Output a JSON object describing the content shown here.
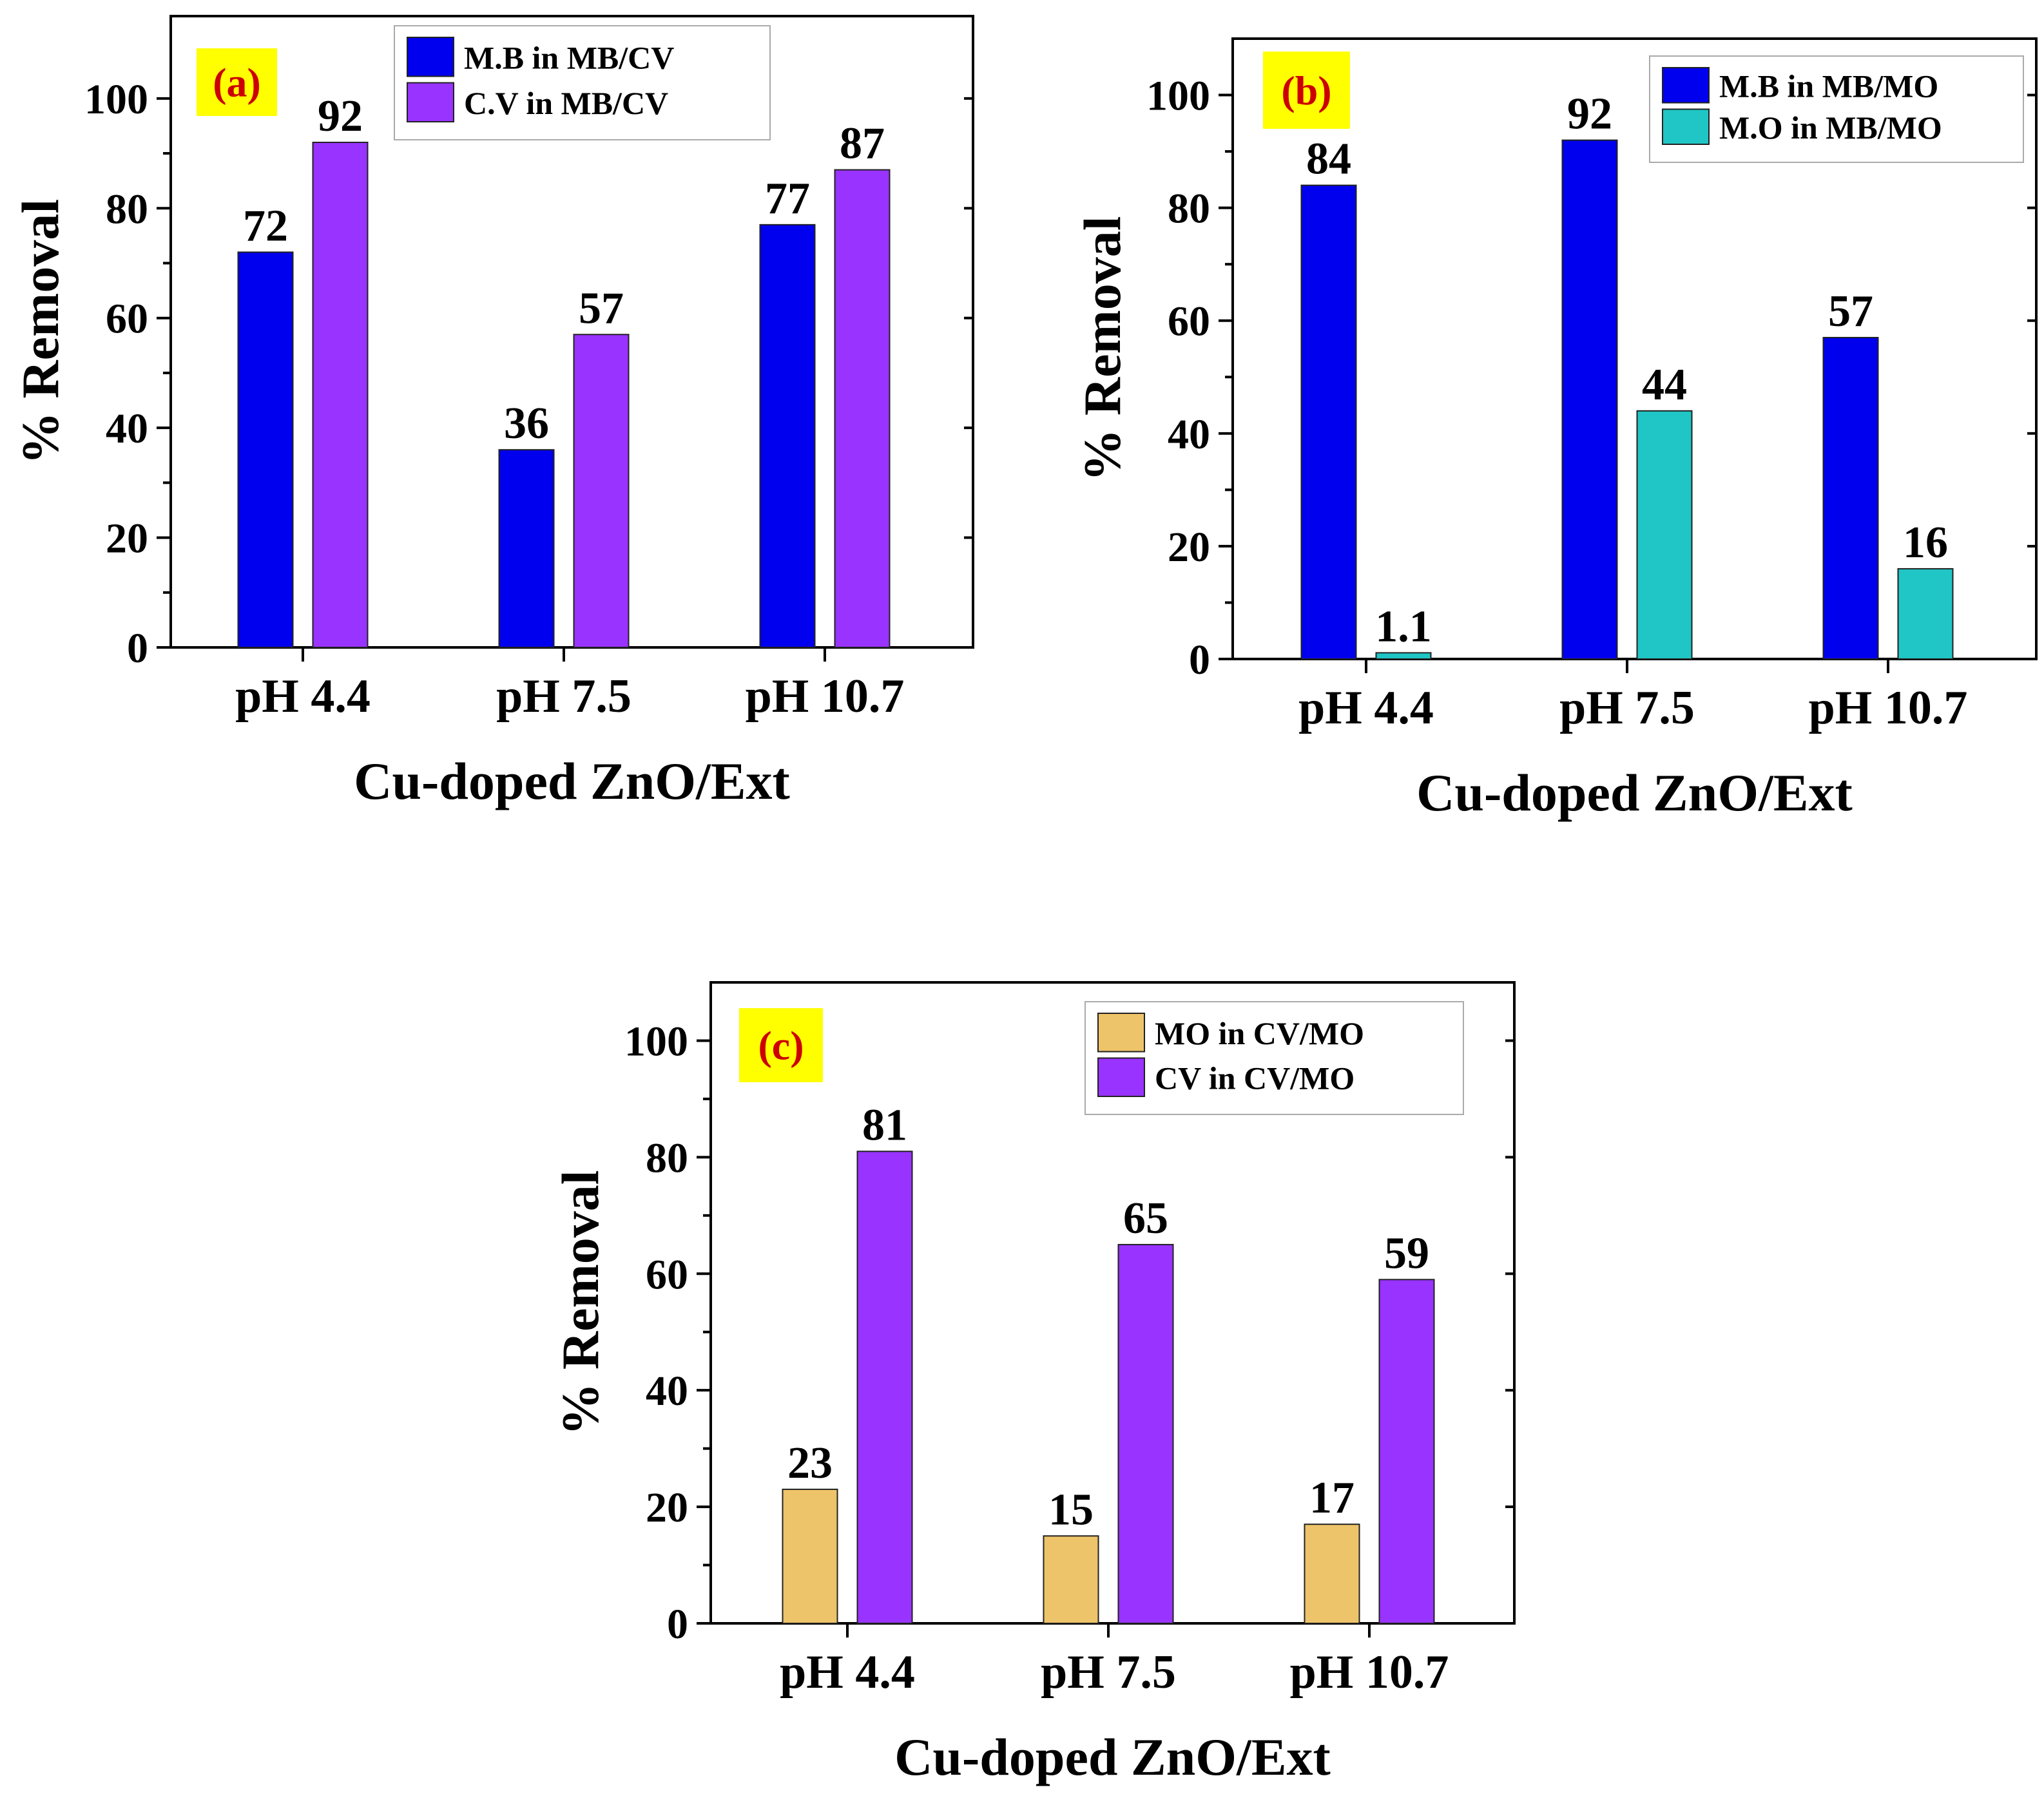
{
  "chart_data": [
    {
      "type": "bar",
      "panel_label": "(a)",
      "categories": [
        "pH 4.4",
        "pH 7.5",
        "pH 10.7"
      ],
      "series": [
        {
          "name": "M.B in MB/CV",
          "values": [
            72,
            36,
            77
          ],
          "value_labels": [
            "72",
            "36",
            "77"
          ],
          "color": "#0000ee"
        },
        {
          "name": "C.V in MB/CV",
          "values": [
            92,
            57,
            87
          ],
          "value_labels": [
            "92",
            "57",
            "87"
          ],
          "color": "#9933ff"
        }
      ],
      "title": "",
      "xlabel": "Cu-doped ZnO/Ext",
      "ylabel": "% Removal",
      "ylim": [
        0,
        115
      ],
      "yticks": [
        "0",
        "20",
        "40",
        "60",
        "80",
        "100"
      ],
      "legend_position": "top-right",
      "grid": false
    },
    {
      "type": "bar",
      "panel_label": "(b)",
      "categories": [
        "pH 4.4",
        "pH 7.5",
        "pH 10.7"
      ],
      "series": [
        {
          "name": "M.B in MB/MO",
          "values": [
            84,
            92,
            57
          ],
          "value_labels": [
            "84",
            "92",
            "57"
          ],
          "color": "#0000ee"
        },
        {
          "name": "M.O in MB/MO",
          "values": [
            1.1,
            44,
            16
          ],
          "value_labels": [
            "1.1",
            "44",
            "16"
          ],
          "color": "#20c5c5"
        }
      ],
      "title": "",
      "xlabel": "Cu-doped ZnO/Ext",
      "ylabel": "% Removal",
      "ylim": [
        0,
        110
      ],
      "yticks": [
        "0",
        "20",
        "40",
        "60",
        "80",
        "100"
      ],
      "legend_position": "top-right",
      "grid": false
    },
    {
      "type": "bar",
      "panel_label": "(c)",
      "categories": [
        "pH 4.4",
        "pH 7.5",
        "pH 10.7"
      ],
      "series": [
        {
          "name": "MO in CV/MO",
          "values": [
            23,
            15,
            17
          ],
          "value_labels": [
            "23",
            "15",
            "17"
          ],
          "color": "#eec46a"
        },
        {
          "name": "CV in CV/MO",
          "values": [
            81,
            65,
            59
          ],
          "value_labels": [
            "81",
            "65",
            "59"
          ],
          "color": "#9933ff"
        }
      ],
      "title": "",
      "xlabel": "Cu-doped ZnO/Ext",
      "ylabel": "% Removal",
      "ylim": [
        0,
        110
      ],
      "yticks": [
        "0",
        "20",
        "40",
        "60",
        "80",
        "100"
      ],
      "legend_position": "top-right",
      "grid": false
    }
  ],
  "colors": {
    "panel_label_background": "#ffff00",
    "panel_label_text": "#cc0000",
    "axis": "#000000"
  }
}
